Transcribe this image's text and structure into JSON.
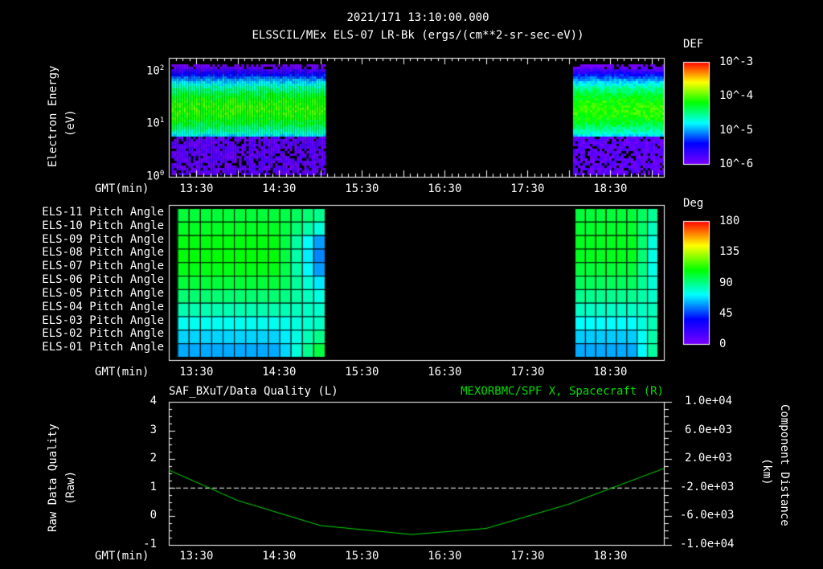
{
  "header": {
    "date": "2021/171 13:10:00.000",
    "title": "ELSSCIL/MEx ELS-07 LR-Bk  (ergs/(cm**2-sr-sec-eV))"
  },
  "time_axis": {
    "label": "GMT(min)",
    "ticks": [
      "13:30",
      "14:30",
      "15:30",
      "16:30",
      "17:30",
      "18:30"
    ],
    "range_hours": [
      13.17,
      19.15
    ]
  },
  "chart_data": [
    {
      "type": "heatmap",
      "name": "spectrogram",
      "ylabel": "Electron Energy",
      "yunit": "(eV)",
      "yscale": "log",
      "ylim": [
        1,
        180
      ],
      "yticks": [
        "10^0",
        "10^1",
        "10^2"
      ],
      "colorbar": {
        "label": "DEF",
        "ticks": [
          "10^-3",
          "10^-4",
          "10^-5",
          "10^-6"
        ],
        "range_log": [
          -6,
          -3
        ]
      },
      "data_intervals_hours": [
        [
          13.2,
          15.05
        ],
        [
          18.05,
          19.15
        ]
      ],
      "peak_energy_eV": 20,
      "peak_log_def": -4.1,
      "low_cutoff_eV": 6
    },
    {
      "type": "heatmap",
      "name": "pitch-angle",
      "colorbar": {
        "label": "Deg",
        "ticks": [
          "180",
          "135",
          "90",
          "45",
          "0"
        ],
        "range": [
          0,
          180
        ]
      },
      "rows": [
        "ELS-11 Pitch Angle",
        "ELS-10 Pitch Angle",
        "ELS-09 Pitch Angle",
        "ELS-08 Pitch Angle",
        "ELS-07 Pitch Angle",
        "ELS-06 Pitch Angle",
        "ELS-05 Pitch Angle",
        "ELS-04 Pitch Angle",
        "ELS-03 Pitch Angle",
        "ELS-02 Pitch Angle",
        "ELS-01 Pitch Angle"
      ],
      "segments": [
        {
          "start_hours": 13.27,
          "end_hours": 15.05,
          "columns": 13,
          "row_values": [
            100,
            103,
            106,
            107,
            105,
            100,
            92,
            83,
            74,
            66,
            60
          ],
          "late_row_values": [
            85,
            70,
            45,
            40,
            45,
            60,
            72,
            78,
            82,
            95,
            110
          ]
        },
        {
          "start_hours": 18.07,
          "end_hours": 19.07,
          "columns": 8,
          "row_values": [
            100,
            102,
            104,
            104,
            100,
            95,
            88,
            80,
            72,
            65,
            60
          ],
          "late_row_values": [
            80,
            70,
            62,
            60,
            62,
            68,
            75,
            82,
            88,
            95,
            100
          ]
        }
      ]
    },
    {
      "type": "line",
      "name": "data-quality-and-position",
      "title_left": "SAF_BXuT/Data Quality (L)",
      "title_right": "MEXORBMC/SPF X, Spacecraft (R)",
      "ylabel_left": "Raw Data Quality",
      "yunit_left": "(Raw)",
      "ylim_left": [
        -1,
        4
      ],
      "yticks_left": [
        "4",
        "3",
        "2",
        "1",
        "0",
        "-1"
      ],
      "ylabel_right": "Component Distance",
      "yunit_right": "(km)",
      "ylim_right": [
        -10000,
        10000
      ],
      "yticks_right": [
        "1.0e+04",
        "6.0e+03",
        "2.0e+03",
        "-2.0e+03",
        "-6.0e+03",
        "-1.0e+04"
      ],
      "series": [
        {
          "name": "Data Quality",
          "axis": "left",
          "color": "#ffffff",
          "constant": 1
        },
        {
          "name": "SPF X",
          "axis": "right",
          "color": "#00dd00",
          "x_hours": [
            13.17,
            14.0,
            15.0,
            16.1,
            17.0,
            18.0,
            19.15
          ],
          "values": [
            450,
            -3800,
            -7300,
            -8550,
            -7700,
            -4300,
            700
          ]
        }
      ]
    }
  ]
}
